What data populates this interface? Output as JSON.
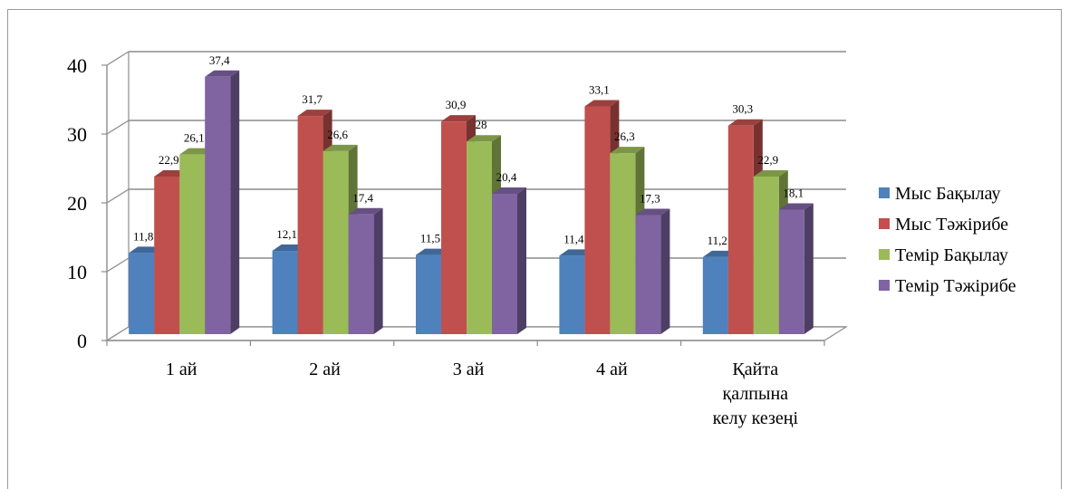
{
  "chart_data": {
    "type": "bar",
    "style": "3d-clustered-column",
    "title": "",
    "xlabel": "",
    "ylabel": "",
    "ylim": [
      0,
      40
    ],
    "yticks": [
      "0",
      "10",
      "20",
      "30",
      "40"
    ],
    "grid": true,
    "legend_position": "right",
    "categories": [
      [
        "1 ай"
      ],
      [
        "2 ай"
      ],
      [
        "3 ай"
      ],
      [
        "4 ай"
      ],
      [
        "Қайта",
        "қалпына",
        "келу кезеңі"
      ]
    ],
    "series": [
      {
        "name": "Мыс Бақылау",
        "color": "#4f81bd",
        "values": [
          11.8,
          12.1,
          11.5,
          11.4,
          11.2
        ],
        "labels": [
          "11,8",
          "12,1",
          "11,5",
          "11,4",
          "11,2"
        ]
      },
      {
        "name": "Мыс Тәжірибе",
        "color": "#c0504d",
        "values": [
          22.9,
          31.7,
          30.9,
          33.1,
          30.3
        ],
        "labels": [
          "22,9",
          "31,7",
          "30,9",
          "33,1",
          "30,3"
        ]
      },
      {
        "name": "Темір Бақылау",
        "color": "#9bbb59",
        "values": [
          26.1,
          26.6,
          28,
          26.3,
          22.9
        ],
        "labels": [
          "26,1",
          "26,6",
          "28",
          "26,3",
          "22,9"
        ]
      },
      {
        "name": "Темір Тәжірибе",
        "color": "#8064a2",
        "values": [
          37.4,
          17.4,
          20.4,
          17.3,
          18.1
        ],
        "labels": [
          "37,4",
          "17,4",
          "20,4",
          "17,3",
          "18,1"
        ]
      }
    ]
  }
}
